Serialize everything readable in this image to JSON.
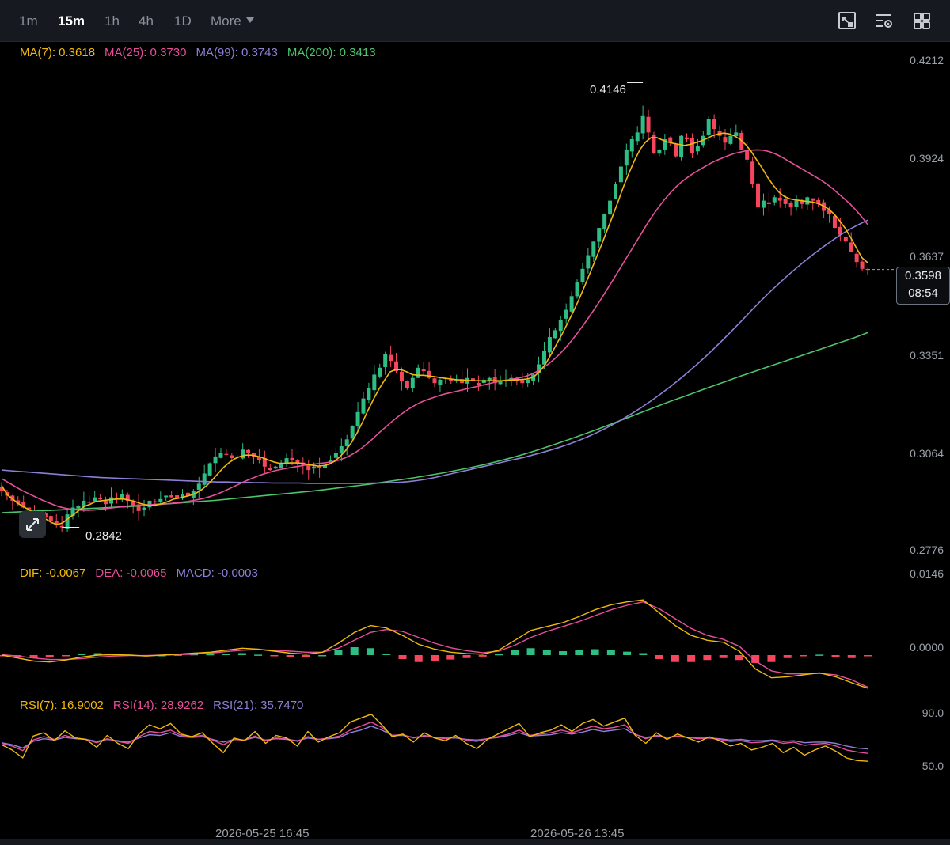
{
  "toolbar": {
    "timeframes": [
      "1m",
      "15m",
      "1h",
      "4h",
      "1D"
    ],
    "active_timeframe": "15m",
    "more_label": "More",
    "icons": [
      "chart-type-icon",
      "indicator-settings-icon",
      "layout-grid-icon"
    ]
  },
  "main_legend": {
    "ma7": "MA(7): 0.3618",
    "ma25": "MA(25): 0.3730",
    "ma99": "MA(99): 0.3743",
    "ma200": "MA(200): 0.3413"
  },
  "price_axis": [
    "0.4212",
    "0.3924",
    "0.3637",
    "0.3351",
    "0.3064",
    "0.2776"
  ],
  "current_price": {
    "price": "0.3598",
    "countdown": "08:54"
  },
  "annotations": {
    "high": "0.4146",
    "low": "0.2842"
  },
  "macd_legend": {
    "dif": "DIF: -0.0067",
    "dea": "DEA: -0.0065",
    "macd": "MACD: -0.0003"
  },
  "macd_axis": [
    "0.0146",
    "0.0000"
  ],
  "rsi_legend": {
    "rsi7": "RSI(7): 16.9002",
    "rsi14": "RSI(14): 28.9262",
    "rsi21": "RSI(21): 35.7470"
  },
  "rsi_axis": [
    "90.0",
    "50.0"
  ],
  "time_axis": [
    "2026-05-25 16:45",
    "2026-05-26 13:45"
  ],
  "colors": {
    "up": "#2ebd85",
    "down": "#f6465d",
    "ma7": "#f0b90b",
    "ma25": "#e64f9a",
    "ma99": "#8e7fd6",
    "ma200": "#4cc46b"
  },
  "chart_data": [
    {
      "type": "candlestick",
      "title": "",
      "ylim": [
        0.2776,
        0.4212
      ],
      "x_ticks": [
        "2026-05-25 16:45",
        "2026-05-26 13:45"
      ],
      "candle_close": [
        0.295,
        0.2935,
        0.292,
        0.2912,
        0.29,
        0.2895,
        0.2885,
        0.2878,
        0.287,
        0.286,
        0.285,
        0.2842,
        0.288,
        0.29,
        0.2905,
        0.292,
        0.2915,
        0.293,
        0.2925,
        0.291,
        0.293,
        0.2925,
        0.294,
        0.292,
        0.2905,
        0.289,
        0.29,
        0.292,
        0.2915,
        0.2925,
        0.2935,
        0.293,
        0.2925,
        0.294,
        0.2935,
        0.295,
        0.297,
        0.3,
        0.303,
        0.305,
        0.306,
        0.3055,
        0.3045,
        0.305,
        0.307,
        0.306,
        0.305,
        0.304,
        0.302,
        0.301,
        0.302,
        0.303,
        0.3045,
        0.304,
        0.303,
        0.3025,
        0.301,
        0.302,
        0.3015,
        0.3025,
        0.304,
        0.306,
        0.308,
        0.31,
        0.314,
        0.318,
        0.322,
        0.325,
        0.329,
        0.331,
        0.335,
        0.333,
        0.33,
        0.327,
        0.325,
        0.328,
        0.331,
        0.33,
        0.328,
        0.3265,
        0.3275,
        0.328,
        0.327,
        0.3275,
        0.3265,
        0.328,
        0.327,
        0.326,
        0.3275,
        0.328,
        0.3265,
        0.327,
        0.3275,
        0.328,
        0.327,
        0.3265,
        0.3275,
        0.329,
        0.332,
        0.336,
        0.34,
        0.342,
        0.345,
        0.348,
        0.352,
        0.356,
        0.36,
        0.364,
        0.368,
        0.372,
        0.376,
        0.38,
        0.385,
        0.39,
        0.395,
        0.398,
        0.4,
        0.405,
        0.4,
        0.394,
        0.395,
        0.398,
        0.397,
        0.393,
        0.399,
        0.398,
        0.394,
        0.396,
        0.399,
        0.404,
        0.401,
        0.399,
        0.397,
        0.399,
        0.4,
        0.395,
        0.392,
        0.385,
        0.378,
        0.38,
        0.379,
        0.381,
        0.38,
        0.379,
        0.378,
        0.38,
        0.379,
        0.381,
        0.38,
        0.379,
        0.377,
        0.376,
        0.372,
        0.37,
        0.368,
        0.365,
        0.362,
        0.36,
        0.3598
      ],
      "ma7": [
        0.2965,
        0.2938,
        0.2925,
        0.2912,
        0.2902,
        0.2893,
        0.2883,
        0.2875,
        0.2866,
        0.2856,
        0.285,
        0.2855,
        0.2868,
        0.288,
        0.2893,
        0.2904,
        0.291,
        0.2918,
        0.292,
        0.2922,
        0.2924,
        0.2925,
        0.2925,
        0.2922,
        0.2918,
        0.2912,
        0.2908,
        0.2906,
        0.2908,
        0.2912,
        0.2918,
        0.2925,
        0.2928,
        0.2932,
        0.2936,
        0.2942,
        0.2952,
        0.2965,
        0.2982,
        0.3,
        0.3018,
        0.3032,
        0.3043,
        0.305,
        0.3054,
        0.3054,
        0.3051,
        0.3046,
        0.304,
        0.3034,
        0.303,
        0.303,
        0.3031,
        0.3031,
        0.303,
        0.3027,
        0.3024,
        0.3022,
        0.3023,
        0.3027,
        0.3036,
        0.305,
        0.3068,
        0.309,
        0.3118,
        0.315,
        0.3185,
        0.3218,
        0.3248,
        0.3274,
        0.3298,
        0.3305,
        0.3304,
        0.3298,
        0.329,
        0.3288,
        0.3288,
        0.3286,
        0.3284,
        0.3281,
        0.3279,
        0.3277,
        0.3275,
        0.3274,
        0.3273,
        0.3272,
        0.3272,
        0.3271,
        0.3272,
        0.3272,
        0.3272,
        0.3273,
        0.3274,
        0.3275,
        0.3276,
        0.3278,
        0.3285,
        0.33,
        0.3322,
        0.335,
        0.338,
        0.341,
        0.3442,
        0.3475,
        0.351,
        0.3548,
        0.3588,
        0.3628,
        0.3668,
        0.371,
        0.3752,
        0.3795,
        0.384,
        0.388,
        0.3918,
        0.395,
        0.3972,
        0.3985,
        0.3985,
        0.3978,
        0.3972,
        0.3968,
        0.3965,
        0.3962,
        0.3965,
        0.397,
        0.3975,
        0.3982,
        0.399,
        0.3995,
        0.3998,
        0.3996,
        0.399,
        0.398,
        0.3965,
        0.3945,
        0.392,
        0.3895,
        0.3868,
        0.3845,
        0.3825,
        0.3812,
        0.3805,
        0.3802,
        0.38,
        0.3798,
        0.3796,
        0.3792,
        0.3785,
        0.3775,
        0.376,
        0.374,
        0.3718,
        0.369,
        0.366,
        0.3632,
        0.3618
      ],
      "ma25": [
        0.2985,
        0.2975,
        0.2965,
        0.2955,
        0.2946,
        0.2938,
        0.293,
        0.2922,
        0.2915,
        0.2908,
        0.2902,
        0.2898,
        0.2895,
        0.2893,
        0.2892,
        0.2892,
        0.2893,
        0.2895,
        0.2897,
        0.2899,
        0.2901,
        0.2903,
        0.2905,
        0.2906,
        0.2907,
        0.2908,
        0.2909,
        0.291,
        0.2911,
        0.2912,
        0.2914,
        0.2916,
        0.2918,
        0.2921,
        0.2924,
        0.2928,
        0.2933,
        0.2939,
        0.2946,
        0.2954,
        0.2962,
        0.297,
        0.2978,
        0.2985,
        0.2992,
        0.2998,
        0.3003,
        0.3008,
        0.3012,
        0.3015,
        0.3018,
        0.3021,
        0.3024,
        0.3026,
        0.3028,
        0.303,
        0.3032,
        0.3035,
        0.3039,
        0.3045,
        0.3053,
        0.3063,
        0.3075,
        0.3089,
        0.3104,
        0.312,
        0.3135,
        0.315,
        0.3164,
        0.3177,
        0.3189,
        0.3199,
        0.3208,
        0.3215,
        0.3221,
        0.3227,
        0.3232,
        0.3236,
        0.324,
        0.3244,
        0.3248,
        0.3252,
        0.3256,
        0.326,
        0.3264,
        0.3268,
        0.3271,
        0.3274,
        0.3277,
        0.328,
        0.3284,
        0.329,
        0.3298,
        0.3308,
        0.332,
        0.3334,
        0.335,
        0.3368,
        0.3388,
        0.341,
        0.3433,
        0.3457,
        0.3482,
        0.3508,
        0.3535,
        0.3562,
        0.359,
        0.3618,
        0.3646,
        0.3674,
        0.3702,
        0.373,
        0.3756,
        0.378,
        0.3802,
        0.3822,
        0.384,
        0.3855,
        0.3868,
        0.388,
        0.389,
        0.39,
        0.391,
        0.3918,
        0.3925,
        0.3932,
        0.3938,
        0.3942,
        0.3946,
        0.3948,
        0.3949,
        0.3948,
        0.3944,
        0.3938,
        0.393,
        0.392,
        0.391,
        0.39,
        0.389,
        0.388,
        0.387,
        0.386,
        0.3848,
        0.3835,
        0.382,
        0.3805,
        0.379,
        0.3772,
        0.3752,
        0.373
      ],
      "ma99": [
        0.301,
        0.3008,
        0.3006,
        0.3004,
        0.3002,
        0.3,
        0.2998,
        0.2996,
        0.2994,
        0.2992,
        0.299,
        0.2988,
        0.2987,
        0.2986,
        0.2985,
        0.2984,
        0.2983,
        0.2982,
        0.2981,
        0.298,
        0.2979,
        0.2978,
        0.2977,
        0.2976,
        0.2975,
        0.2975,
        0.2974,
        0.2974,
        0.2973,
        0.2973,
        0.2972,
        0.2972,
        0.2972,
        0.2972,
        0.2971,
        0.2971,
        0.2971,
        0.2971,
        0.2971,
        0.2971,
        0.2971,
        0.2972,
        0.2972,
        0.2973,
        0.2974,
        0.2976,
        0.2979,
        0.2983,
        0.2988,
        0.2994,
        0.3,
        0.3006,
        0.3012,
        0.3018,
        0.3024,
        0.303,
        0.3036,
        0.3042,
        0.3048,
        0.3055,
        0.3062,
        0.307,
        0.3078,
        0.3087,
        0.3097,
        0.3108,
        0.312,
        0.3133,
        0.3147,
        0.3162,
        0.3178,
        0.3195,
        0.3213,
        0.3232,
        0.3252,
        0.3273,
        0.3295,
        0.3318,
        0.3342,
        0.3367,
        0.3393,
        0.342,
        0.3447,
        0.3475,
        0.3502,
        0.3528,
        0.3553,
        0.3577,
        0.36,
        0.3622,
        0.3643,
        0.3663,
        0.3682,
        0.37,
        0.3716,
        0.373,
        0.3743
      ],
      "ma200": [
        0.2885,
        0.2887,
        0.2889,
        0.2891,
        0.2893,
        0.2895,
        0.2897,
        0.2899,
        0.2901,
        0.2903,
        0.2906,
        0.2909,
        0.2912,
        0.2915,
        0.2918,
        0.2921,
        0.2925,
        0.2929,
        0.2933,
        0.2937,
        0.2941,
        0.2945,
        0.2949,
        0.2954,
        0.2959,
        0.2964,
        0.2969,
        0.2975,
        0.2981,
        0.2987,
        0.2994,
        0.3001,
        0.3009,
        0.3017,
        0.3026,
        0.3036,
        0.3047,
        0.3059,
        0.3072,
        0.3086,
        0.31,
        0.3115,
        0.313,
        0.3146,
        0.3162,
        0.3178,
        0.3194,
        0.321,
        0.3225,
        0.324,
        0.3255,
        0.327,
        0.3285,
        0.3299,
        0.3313,
        0.3327,
        0.3341,
        0.3355,
        0.3369,
        0.3383,
        0.3397,
        0.3413
      ]
    },
    {
      "type": "line",
      "title": "",
      "ylim": [
        -0.0118,
        0.0146
      ],
      "series": [
        {
          "name": "DIF",
          "values": [
            0.0,
            -0.0006,
            -0.0012,
            -0.0014,
            -0.001,
            -0.0004,
            0.0,
            0.0001,
            0.0,
            -0.0002,
            0.0,
            0.0002,
            0.0004,
            0.0006,
            0.001,
            0.0014,
            0.0012,
            0.0008,
            0.0004,
            0.0002,
            0.0006,
            0.0024,
            0.0046,
            0.006,
            0.0055,
            0.004,
            0.0022,
            0.0012,
            0.0006,
            0.0003,
            0.0002,
            0.001,
            0.003,
            0.005,
            0.0058,
            0.0066,
            0.0078,
            0.0092,
            0.0102,
            0.0108,
            0.0112,
            0.0086,
            0.006,
            0.004,
            0.003,
            0.0026,
            0.0008,
            -0.0028,
            -0.0046,
            -0.0044,
            -0.004,
            -0.0036,
            -0.0044,
            -0.0056,
            -0.0067
          ]
        },
        {
          "name": "DEA",
          "values": [
            0.0001,
            -0.0002,
            -0.0006,
            -0.0009,
            -0.0009,
            -0.0007,
            -0.0004,
            -0.0002,
            -0.0001,
            -0.0001,
            0.0,
            0.0001,
            0.0002,
            0.0004,
            0.0007,
            0.001,
            0.0011,
            0.001,
            0.0008,
            0.0006,
            0.0006,
            0.0014,
            0.003,
            0.0046,
            0.0052,
            0.0048,
            0.0036,
            0.0024,
            0.0015,
            0.0009,
            0.0005,
            0.0008,
            0.002,
            0.0036,
            0.0048,
            0.0058,
            0.0068,
            0.008,
            0.0092,
            0.0101,
            0.0108,
            0.0094,
            0.0074,
            0.0054,
            0.004,
            0.0032,
            0.0018,
            -0.0012,
            -0.0032,
            -0.0038,
            -0.0038,
            -0.0037,
            -0.004,
            -0.005,
            -0.0065
          ]
        }
      ]
    },
    {
      "type": "line",
      "title": "",
      "ylim": [
        0,
        100
      ],
      "series": [
        {
          "name": "RSI(7)",
          "values": [
            42,
            34,
            22,
            55,
            60,
            48,
            63,
            52,
            50,
            38,
            56,
            44,
            36,
            58,
            72,
            66,
            74,
            58,
            54,
            60,
            44,
            30,
            52,
            48,
            62,
            44,
            56,
            52,
            40,
            62,
            46,
            54,
            60,
            76,
            82,
            88,
            72,
            54,
            58,
            46,
            60,
            52,
            48,
            56,
            44,
            36,
            50,
            58,
            66,
            74,
            54,
            60,
            64,
            72,
            62,
            74,
            80,
            70,
            76,
            82,
            56,
            44,
            60,
            50,
            58,
            52,
            46,
            54,
            48,
            40,
            44,
            34,
            38,
            44,
            30,
            38,
            26,
            34,
            40,
            32,
            22,
            18,
            16.9
          ]
        },
        {
          "name": "RSI(14)",
          "values": [
            44,
            40,
            33,
            49,
            54,
            50,
            56,
            52,
            50,
            45,
            51,
            47,
            44,
            54,
            62,
            60,
            64,
            56,
            54,
            56,
            49,
            42,
            50,
            49,
            55,
            48,
            52,
            51,
            47,
            54,
            50,
            52,
            55,
            64,
            70,
            76,
            68,
            56,
            57,
            52,
            56,
            53,
            51,
            53,
            49,
            47,
            51,
            54,
            58,
            64,
            56,
            58,
            60,
            64,
            60,
            65,
            70,
            66,
            68,
            72,
            58,
            51,
            56,
            53,
            55,
            53,
            51,
            52,
            50,
            47,
            48,
            45,
            46,
            48,
            44,
            46,
            41,
            43,
            44,
            40,
            34,
            31,
            28.9
          ]
        },
        {
          "name": "RSI(21)",
          "values": [
            45,
            42,
            37,
            47,
            51,
            49,
            53,
            51,
            50,
            47,
            50,
            48,
            46,
            52,
            57,
            56,
            60,
            54,
            53,
            54,
            50,
            46,
            50,
            49,
            53,
            49,
            51,
            50,
            48,
            52,
            50,
            51,
            53,
            60,
            64,
            70,
            64,
            56,
            56,
            53,
            55,
            53,
            52,
            52,
            50,
            49,
            51,
            53,
            56,
            60,
            55,
            56,
            57,
            60,
            58,
            61,
            65,
            62,
            64,
            66,
            57,
            53,
            55,
            53,
            54,
            53,
            52,
            52,
            51,
            49,
            50,
            48,
            48,
            49,
            47,
            48,
            45,
            46,
            46,
            44,
            40,
            37,
            35.7
          ]
        }
      ]
    }
  ]
}
